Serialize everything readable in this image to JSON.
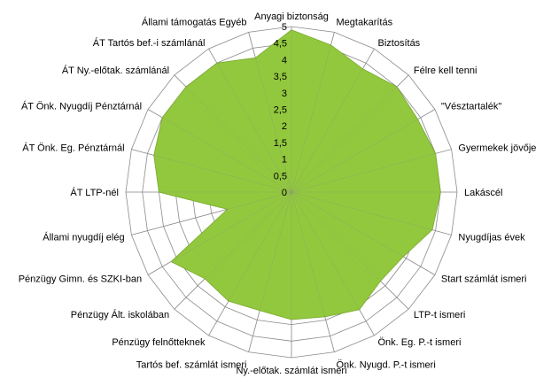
{
  "chart_data": {
    "type": "radar",
    "title": "",
    "categories": [
      "Anyagi biztonság",
      "Megtakarítás",
      "Biztosítás",
      "Félre kell tenni",
      "\"Vésztartalék\"",
      "Gyermekek jövője",
      "Lakáscél",
      "Nyugdíjas évek",
      "Start számlát  ismeri",
      "LTP-t ismeri",
      "Önk. Eg. P.-t ismeri",
      "Önk. Nyugd.  P.-t ismeri",
      "Ny.-előtak. számlát  ismeri",
      "Tartós bef. számlát  ismeri",
      "Pénzügy felnőtteknek",
      "Pénzügy Ált. iskolában",
      "Pénzügy Gimn.  és SZKI-ban",
      "Állami nyugdíj elég",
      "ÁT  LTP-nél",
      "ÁT Önk. Eg.  Pénztárnál",
      "ÁT Önk. Nyugdíj  Pénztárnál",
      "ÁT Ny.-előtak.  számlánál",
      "ÁT Tartós bef.-i számlánál",
      "Állami támogatás  Egyéb"
    ],
    "series": [
      {
        "values": [
          4.9,
          4.6,
          4.3,
          4.5,
          4.4,
          4.5,
          4.5,
          4.4,
          3.9,
          3.8,
          4.1,
          3.9,
          3.85,
          3.7,
          3.8,
          3.7,
          4.2,
          2.0,
          4.0,
          4.3,
          4.5,
          4.5,
          4.5,
          4.2
        ],
        "color": "#92c83e"
      }
    ],
    "rlim": [
      0,
      5
    ],
    "ticks": [
      "0",
      "0,5",
      "1",
      "1,5",
      "2",
      "2,5",
      "3",
      "3,5",
      "4",
      "4,5",
      "5"
    ],
    "grid": true,
    "legend": "none"
  }
}
